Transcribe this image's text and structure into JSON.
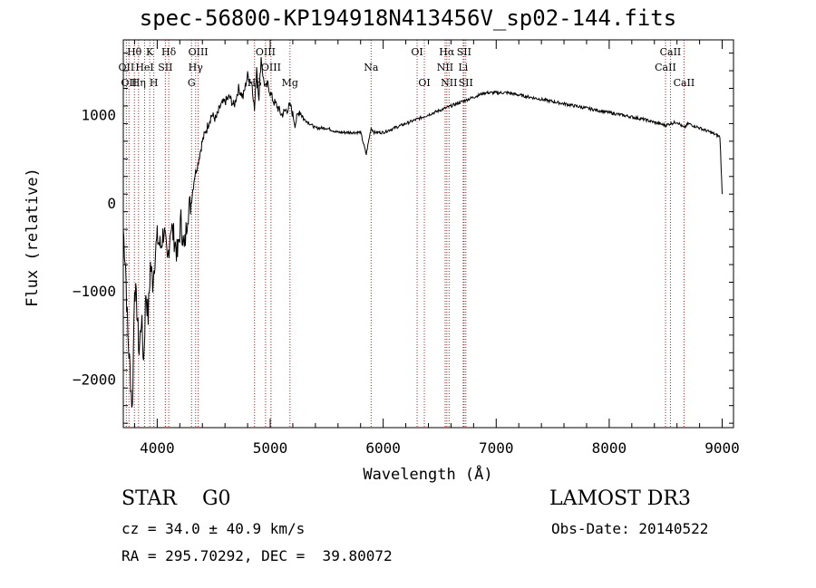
{
  "chart_data": {
    "type": "line",
    "title": "spec-56800-KP194918N413456V_sp02-144.fits",
    "xlabel": "Wavelength (Å)",
    "ylabel": "Flux (relative)",
    "xlim": [
      3700,
      9100
    ],
    "ylim": [
      -2550,
      1850
    ],
    "xticks": [
      4000,
      5000,
      6000,
      7000,
      8000,
      9000
    ],
    "yticks": [
      -2000,
      -1000,
      0,
      1000
    ],
    "series": [
      {
        "name": "flux",
        "x": [
          3700,
          3720,
          3740,
          3760,
          3780,
          3800,
          3820,
          3840,
          3860,
          3880,
          3900,
          3920,
          3940,
          3960,
          3980,
          4000,
          4030,
          4060,
          4090,
          4120,
          4150,
          4180,
          4210,
          4240,
          4270,
          4300,
          4330,
          4360,
          4400,
          4440,
          4480,
          4520,
          4560,
          4600,
          4640,
          4680,
          4720,
          4760,
          4800,
          4840,
          4861,
          4880,
          4900,
          4920,
          4940,
          4960,
          4980,
          5000,
          5030,
          5060,
          5100,
          5140,
          5180,
          5220,
          5260,
          5300,
          5400,
          5500,
          5600,
          5700,
          5800,
          5850,
          5893,
          5920,
          6000,
          6100,
          6200,
          6300,
          6400,
          6500,
          6600,
          6700,
          6800,
          6900,
          7000,
          7100,
          7300,
          7500,
          7700,
          7900,
          8100,
          8300,
          8498,
          8542,
          8600,
          8662,
          8700,
          8800,
          8900,
          8980,
          9000
        ],
        "y": [
          -300,
          -700,
          -1500,
          -1900,
          -2350,
          -900,
          -1200,
          -1700,
          -1300,
          -1800,
          -1000,
          -1300,
          -700,
          -900,
          -600,
          -400,
          -500,
          -300,
          -700,
          -250,
          -400,
          -600,
          -200,
          -550,
          -100,
          0,
          300,
          450,
          700,
          850,
          1000,
          950,
          1100,
          1150,
          1200,
          1100,
          1300,
          1200,
          1450,
          1350,
          1050,
          1550,
          1200,
          1650,
          1400,
          1300,
          1350,
          1250,
          1150,
          1100,
          1000,
          1050,
          1100,
          900,
          1050,
          950,
          850,
          850,
          800,
          800,
          800,
          550,
          850,
          800,
          800,
          850,
          900,
          950,
          1000,
          1050,
          1100,
          1150,
          1200,
          1250,
          1250,
          1250,
          1200,
          1150,
          1100,
          1050,
          1000,
          950,
          880,
          900,
          920,
          850,
          900,
          850,
          800,
          750,
          100
        ]
      }
    ],
    "lines": [
      {
        "wl": 3727,
        "label": "OII",
        "row": 2
      },
      {
        "wl": 3750,
        "label": "OII",
        "row": 3
      },
      {
        "wl": 3798,
        "label": "Hθ",
        "row": 1
      },
      {
        "wl": 3835,
        "label": "Hη",
        "row": 3
      },
      {
        "wl": 3889,
        "label": "HeI",
        "row": 2
      },
      {
        "wl": 3934,
        "label": "K",
        "row": 1
      },
      {
        "wl": 3970,
        "label": "H",
        "row": 3
      },
      {
        "wl": 4072,
        "label": "SII",
        "row": 2
      },
      {
        "wl": 4102,
        "label": "Hδ",
        "row": 1
      },
      {
        "wl": 4304,
        "label": "G",
        "row": 3
      },
      {
        "wl": 4340,
        "label": "Hγ",
        "row": 2
      },
      {
        "wl": 4363,
        "label": "OIII",
        "row": 1
      },
      {
        "wl": 4861,
        "label": "Hβ",
        "row": 3
      },
      {
        "wl": 4959,
        "label": "OIII",
        "row": 1
      },
      {
        "wl": 5007,
        "label": "OIII",
        "row": 2
      },
      {
        "wl": 5175,
        "label": "Mg",
        "row": 3
      },
      {
        "wl": 5893,
        "label": "Na",
        "row": 2
      },
      {
        "wl": 6300,
        "label": "OI",
        "row": 1
      },
      {
        "wl": 6364,
        "label": "OI",
        "row": 3
      },
      {
        "wl": 6548,
        "label": "NII",
        "row": 2
      },
      {
        "wl": 6563,
        "label": "Hα",
        "row": 1
      },
      {
        "wl": 6583,
        "label": "NII",
        "row": 3
      },
      {
        "wl": 6708,
        "label": "Li",
        "row": 2
      },
      {
        "wl": 6716,
        "label": "SII",
        "row": 1
      },
      {
        "wl": 6731,
        "label": "SII",
        "row": 3
      },
      {
        "wl": 8498,
        "label": "CaII",
        "row": 2
      },
      {
        "wl": 8542,
        "label": "CaII",
        "row": 1
      },
      {
        "wl": 8662,
        "label": "CaII",
        "row": 3
      }
    ]
  },
  "info": {
    "object_class": "STAR",
    "subclass": "G0",
    "survey": "LAMOST DR3",
    "redshift_text": "cz = 34.0 ± 40.9 km/s",
    "obs_date": "Obs-Date: 20140522",
    "coords": "RA = 295.70292, DEC =  39.80072"
  }
}
